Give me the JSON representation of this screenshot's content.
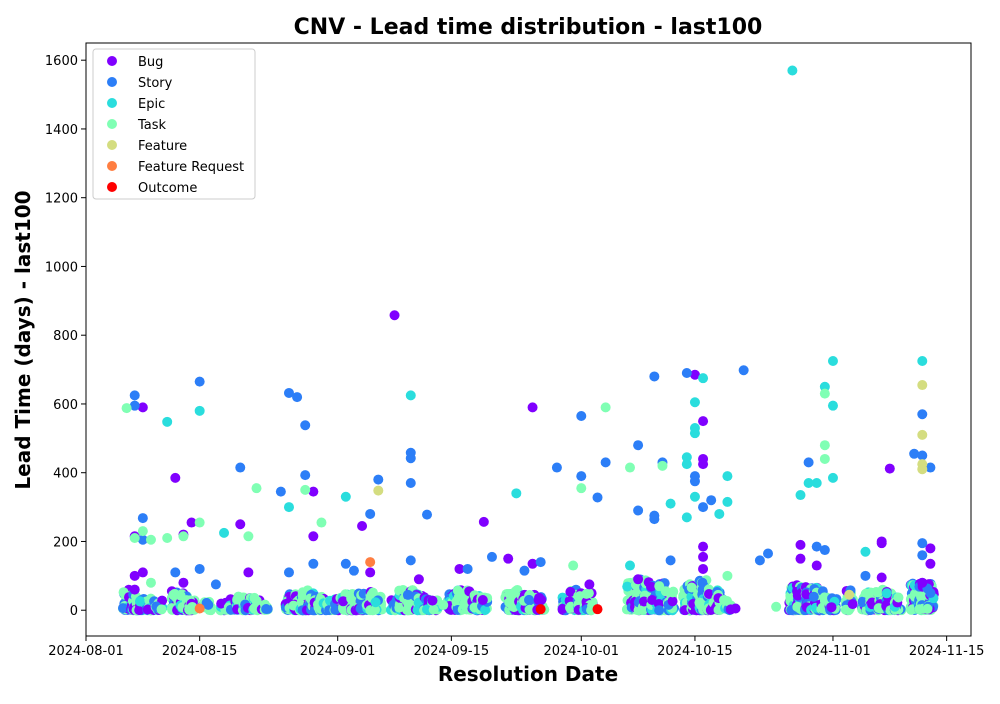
{
  "chart_data": {
    "type": "scatter",
    "title": "CNV - Lead time distribution - last100",
    "xlabel": "Resolution Date",
    "ylabel": "Lead Time (days) - last100",
    "xlim": [
      "2024-08-01",
      "2024-11-18"
    ],
    "ylim": [
      -75,
      1650
    ],
    "x_ticks": [
      "2024-08-01",
      "2024-08-15",
      "2024-09-01",
      "2024-09-15",
      "2024-10-01",
      "2024-10-15",
      "2024-11-01",
      "2024-11-15"
    ],
    "y_ticks": [
      0,
      200,
      400,
      600,
      800,
      1000,
      1200,
      1400,
      1600
    ],
    "grid": false,
    "legend": "top-left",
    "series": [
      {
        "name": "Bug",
        "color": "#8000ff",
        "points": [
          [
            "2024-08-07",
            215
          ],
          [
            "2024-08-07",
            100
          ],
          [
            "2024-08-08",
            590
          ],
          [
            "2024-08-08",
            110
          ],
          [
            "2024-08-07",
            60
          ],
          [
            "2024-08-12",
            385
          ],
          [
            "2024-08-13",
            220
          ],
          [
            "2024-08-14",
            255
          ],
          [
            "2024-08-13",
            80
          ],
          [
            "2024-08-20",
            250
          ],
          [
            "2024-08-21",
            110
          ],
          [
            "2024-08-29",
            215
          ],
          [
            "2024-08-29",
            345
          ],
          [
            "2024-09-04",
            245
          ],
          [
            "2024-09-05",
            110
          ],
          [
            "2024-09-08",
            858
          ],
          [
            "2024-09-11",
            90
          ],
          [
            "2024-09-19",
            257
          ],
          [
            "2024-09-22",
            150
          ],
          [
            "2024-09-25",
            590
          ],
          [
            "2024-09-25",
            135
          ],
          [
            "2024-09-16",
            120
          ],
          [
            "2024-10-02",
            75
          ],
          [
            "2024-10-08",
            90
          ],
          [
            "2024-10-15",
            685
          ],
          [
            "2024-10-16",
            550
          ],
          [
            "2024-10-16",
            440
          ],
          [
            "2024-10-16",
            425
          ],
          [
            "2024-10-16",
            185
          ],
          [
            "2024-10-16",
            155
          ],
          [
            "2024-10-16",
            120
          ],
          [
            "2024-10-20",
            5
          ],
          [
            "2024-10-28",
            190
          ],
          [
            "2024-10-28",
            150
          ],
          [
            "2024-10-30",
            130
          ],
          [
            "2024-11-07",
            195
          ],
          [
            "2024-11-07",
            200
          ],
          [
            "2024-11-07",
            95
          ],
          [
            "2024-11-08",
            412
          ],
          [
            "2024-11-13",
            180
          ],
          [
            "2024-11-13",
            135
          ],
          [
            "2024-11-12",
            80
          ]
        ]
      },
      {
        "name": "Story",
        "color": "#2c7ef7",
        "points": [
          [
            "2024-08-07",
            595
          ],
          [
            "2024-08-07",
            625
          ],
          [
            "2024-08-08",
            268
          ],
          [
            "2024-08-08",
            205
          ],
          [
            "2024-08-12",
            110
          ],
          [
            "2024-08-15",
            665
          ],
          [
            "2024-08-15",
            120
          ],
          [
            "2024-08-17",
            75
          ],
          [
            "2024-08-20",
            415
          ],
          [
            "2024-08-25",
            345
          ],
          [
            "2024-08-26",
            632
          ],
          [
            "2024-08-26",
            110
          ],
          [
            "2024-08-27",
            620
          ],
          [
            "2024-08-28",
            538
          ],
          [
            "2024-08-28",
            393
          ],
          [
            "2024-08-29",
            135
          ],
          [
            "2024-09-02",
            135
          ],
          [
            "2024-09-03",
            115
          ],
          [
            "2024-09-05",
            280
          ],
          [
            "2024-09-06",
            380
          ],
          [
            "2024-09-10",
            458
          ],
          [
            "2024-09-10",
            442
          ],
          [
            "2024-09-10",
            370
          ],
          [
            "2024-09-12",
            278
          ],
          [
            "2024-09-10",
            145
          ],
          [
            "2024-09-17",
            120
          ],
          [
            "2024-09-20",
            155
          ],
          [
            "2024-09-24",
            115
          ],
          [
            "2024-09-28",
            415
          ],
          [
            "2024-09-26",
            140
          ],
          [
            "2024-10-01",
            565
          ],
          [
            "2024-10-01",
            390
          ],
          [
            "2024-10-03",
            328
          ],
          [
            "2024-10-04",
            430
          ],
          [
            "2024-10-08",
            480
          ],
          [
            "2024-10-08",
            290
          ],
          [
            "2024-10-10",
            680
          ],
          [
            "2024-10-10",
            275
          ],
          [
            "2024-10-10",
            265
          ],
          [
            "2024-10-11",
            430
          ],
          [
            "2024-10-12",
            145
          ],
          [
            "2024-10-14",
            690
          ],
          [
            "2024-10-15",
            390
          ],
          [
            "2024-10-15",
            375
          ],
          [
            "2024-10-17",
            320
          ],
          [
            "2024-10-16",
            300
          ],
          [
            "2024-10-21",
            698
          ],
          [
            "2024-10-24",
            165
          ],
          [
            "2024-10-23",
            145
          ],
          [
            "2024-10-29",
            430
          ],
          [
            "2024-10-30",
            185
          ],
          [
            "2024-10-31",
            175
          ],
          [
            "2024-11-05",
            100
          ],
          [
            "2024-11-11",
            455
          ],
          [
            "2024-11-12",
            450
          ],
          [
            "2024-11-12",
            570
          ],
          [
            "2024-11-12",
            195
          ],
          [
            "2024-11-12",
            160
          ],
          [
            "2024-11-13",
            415
          ],
          [
            "2024-11-13",
            50
          ]
        ]
      },
      {
        "name": "Epic",
        "color": "#2adddd",
        "points": [
          [
            "2024-08-11",
            548
          ],
          [
            "2024-08-15",
            580
          ],
          [
            "2024-08-18",
            225
          ],
          [
            "2024-08-26",
            300
          ],
          [
            "2024-09-02",
            330
          ],
          [
            "2024-09-10",
            625
          ],
          [
            "2024-09-23",
            340
          ],
          [
            "2024-10-07",
            130
          ],
          [
            "2024-10-12",
            310
          ],
          [
            "2024-10-14",
            445
          ],
          [
            "2024-10-14",
            425
          ],
          [
            "2024-10-14",
            270
          ],
          [
            "2024-10-15",
            605
          ],
          [
            "2024-10-15",
            530
          ],
          [
            "2024-10-15",
            515
          ],
          [
            "2024-10-16",
            675
          ],
          [
            "2024-10-15",
            330
          ],
          [
            "2024-10-18",
            280
          ],
          [
            "2024-10-19",
            390
          ],
          [
            "2024-10-19",
            315
          ],
          [
            "2024-10-27",
            1570
          ],
          [
            "2024-10-28",
            335
          ],
          [
            "2024-10-29",
            370
          ],
          [
            "2024-10-30",
            370
          ],
          [
            "2024-11-01",
            725
          ],
          [
            "2024-11-01",
            595
          ],
          [
            "2024-11-01",
            385
          ],
          [
            "2024-10-31",
            650
          ],
          [
            "2024-11-05",
            170
          ],
          [
            "2024-11-12",
            725
          ]
        ]
      },
      {
        "name": "Task",
        "color": "#80ffb4",
        "points": [
          [
            "2024-08-06",
            588
          ],
          [
            "2024-08-07",
            210
          ],
          [
            "2024-08-08",
            230
          ],
          [
            "2024-08-09",
            205
          ],
          [
            "2024-08-09",
            80
          ],
          [
            "2024-08-11",
            210
          ],
          [
            "2024-08-13",
            215
          ],
          [
            "2024-08-15",
            255
          ],
          [
            "2024-08-21",
            215
          ],
          [
            "2024-08-22",
            355
          ],
          [
            "2024-08-28",
            350
          ],
          [
            "2024-08-30",
            255
          ],
          [
            "2024-09-14",
            15
          ],
          [
            "2024-09-30",
            130
          ],
          [
            "2024-10-01",
            355
          ],
          [
            "2024-10-04",
            590
          ],
          [
            "2024-10-07",
            415
          ],
          [
            "2024-10-11",
            420
          ],
          [
            "2024-10-19",
            100
          ],
          [
            "2024-10-25",
            10
          ],
          [
            "2024-10-31",
            480
          ],
          [
            "2024-10-31",
            440
          ],
          [
            "2024-10-31",
            630
          ]
        ]
      },
      {
        "name": "Feature",
        "color": "#d4dd80",
        "points": [
          [
            "2024-09-06",
            348
          ],
          [
            "2024-11-03",
            45
          ],
          [
            "2024-11-12",
            655
          ],
          [
            "2024-11-12",
            510
          ],
          [
            "2024-11-12",
            425
          ],
          [
            "2024-11-12",
            410
          ]
        ]
      },
      {
        "name": "Feature Request",
        "color": "#ff7e41",
        "points": [
          [
            "2024-08-15",
            5
          ],
          [
            "2024-09-05",
            140
          ]
        ]
      },
      {
        "name": "Outcome",
        "color": "#ff0000",
        "points": [
          [
            "2024-09-26",
            3
          ],
          [
            "2024-10-03",
            3
          ]
        ]
      }
    ],
    "dense_clusters": [
      [
        "2024-08-06",
        0,
        60,
        40
      ],
      [
        "2024-08-07",
        0,
        50,
        40
      ],
      [
        "2024-08-08",
        0,
        40,
        30
      ],
      [
        "2024-08-09",
        0,
        40,
        25
      ],
      [
        "2024-08-10",
        0,
        30,
        15
      ],
      [
        "2024-08-12",
        0,
        60,
        35
      ],
      [
        "2024-08-13",
        0,
        50,
        35
      ],
      [
        "2024-08-14",
        0,
        40,
        25
      ],
      [
        "2024-08-16",
        0,
        30,
        12
      ],
      [
        "2024-08-18",
        0,
        30,
        10
      ],
      [
        "2024-08-19",
        0,
        40,
        15
      ],
      [
        "2024-08-20",
        0,
        40,
        20
      ],
      [
        "2024-08-21",
        0,
        40,
        20
      ],
      [
        "2024-08-22",
        0,
        40,
        15
      ],
      [
        "2024-08-23",
        0,
        20,
        8
      ],
      [
        "2024-08-26",
        0,
        50,
        25
      ],
      [
        "2024-08-27",
        0,
        50,
        30
      ],
      [
        "2024-08-28",
        0,
        60,
        35
      ],
      [
        "2024-08-29",
        0,
        50,
        30
      ],
      [
        "2024-08-30",
        0,
        40,
        25
      ],
      [
        "2024-08-31",
        0,
        30,
        15
      ],
      [
        "2024-09-01",
        0,
        40,
        20
      ],
      [
        "2024-09-02",
        0,
        50,
        25
      ],
      [
        "2024-09-03",
        0,
        50,
        25
      ],
      [
        "2024-09-04",
        0,
        50,
        25
      ],
      [
        "2024-09-05",
        0,
        60,
        25
      ],
      [
        "2024-09-06",
        0,
        40,
        20
      ],
      [
        "2024-09-08",
        0,
        40,
        20
      ],
      [
        "2024-09-09",
        0,
        60,
        30
      ],
      [
        "2024-09-10",
        0,
        60,
        30
      ],
      [
        "2024-09-11",
        0,
        50,
        25
      ],
      [
        "2024-09-12",
        0,
        40,
        20
      ],
      [
        "2024-09-13",
        0,
        30,
        10
      ],
      [
        "2024-09-15",
        0,
        50,
        25
      ],
      [
        "2024-09-16",
        0,
        60,
        30
      ],
      [
        "2024-09-17",
        0,
        60,
        30
      ],
      [
        "2024-09-18",
        0,
        50,
        25
      ],
      [
        "2024-09-19",
        0,
        40,
        20
      ],
      [
        "2024-09-22",
        0,
        50,
        25
      ],
      [
        "2024-09-23",
        0,
        60,
        30
      ],
      [
        "2024-09-24",
        0,
        50,
        30
      ],
      [
        "2024-09-25",
        0,
        50,
        30
      ],
      [
        "2024-09-26",
        0,
        40,
        20
      ],
      [
        "2024-09-29",
        0,
        40,
        20
      ],
      [
        "2024-09-30",
        0,
        60,
        30
      ],
      [
        "2024-10-01",
        0,
        60,
        30
      ],
      [
        "2024-10-02",
        0,
        50,
        25
      ],
      [
        "2024-10-07",
        0,
        80,
        25
      ],
      [
        "2024-10-08",
        0,
        90,
        35
      ],
      [
        "2024-10-09",
        0,
        90,
        35
      ],
      [
        "2024-10-10",
        0,
        90,
        35
      ],
      [
        "2024-10-11",
        0,
        80,
        30
      ],
      [
        "2024-10-12",
        0,
        60,
        20
      ],
      [
        "2024-10-14",
        0,
        90,
        35
      ],
      [
        "2024-10-15",
        0,
        90,
        40
      ],
      [
        "2024-10-16",
        0,
        90,
        40
      ],
      [
        "2024-10-17",
        0,
        70,
        25
      ],
      [
        "2024-10-18",
        0,
        60,
        20
      ],
      [
        "2024-10-19",
        0,
        40,
        10
      ],
      [
        "2024-10-27",
        0,
        80,
        40
      ],
      [
        "2024-10-28",
        0,
        80,
        40
      ],
      [
        "2024-10-29",
        0,
        70,
        35
      ],
      [
        "2024-10-30",
        0,
        70,
        35
      ],
      [
        "2024-10-31",
        0,
        60,
        25
      ],
      [
        "2024-11-01",
        0,
        40,
        15
      ],
      [
        "2024-11-03",
        0,
        70,
        20
      ],
      [
        "2024-11-05",
        0,
        60,
        30
      ],
      [
        "2024-11-06",
        0,
        60,
        30
      ],
      [
        "2024-11-07",
        0,
        60,
        30
      ],
      [
        "2024-11-08",
        0,
        60,
        30
      ],
      [
        "2024-11-09",
        0,
        40,
        15
      ],
      [
        "2024-11-11",
        0,
        80,
        35
      ],
      [
        "2024-11-12",
        0,
        80,
        40
      ],
      [
        "2024-11-13",
        0,
        80,
        35
      ]
    ]
  }
}
